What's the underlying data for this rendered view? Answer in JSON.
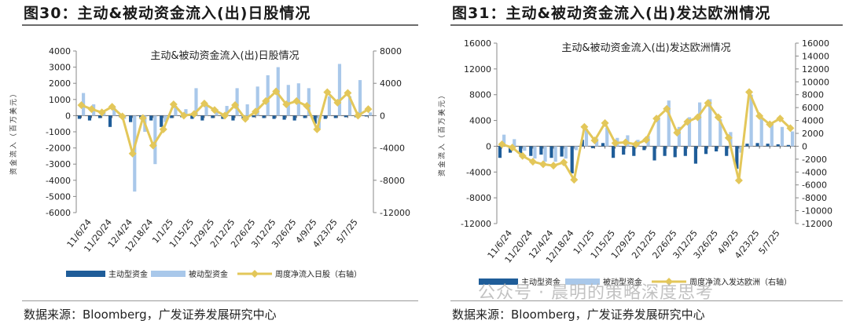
{
  "panels": [
    {
      "fig_title": "图30：主动&被动资金流入(出)日股情况",
      "source": "数据来源：Bloomberg，广发证券发展研究中心",
      "chart_data": {
        "type": "bar+line",
        "title": "主动&被动资金流入(出)日股情况",
        "ylabel": "资金流入（百万美元）",
        "ylim": [
          -6000,
          4000
        ],
        "y_ticks": [
          4000,
          3000,
          2000,
          1000,
          0,
          -1000,
          -2000,
          -3000,
          -4000,
          -5000,
          -6000
        ],
        "y2lim": [
          -12000,
          8000
        ],
        "y2_ticks": [
          8000,
          4000,
          0,
          -4000,
          -8000,
          -12000
        ],
        "x_tick_labels": [
          "11/6/24",
          "11/20/24",
          "12/4/24",
          "12/18/24",
          "1/1/25",
          "1/15/25",
          "1/29/25",
          "2/12/25",
          "2/26/25",
          "3/12/25",
          "3/26/25",
          "4/9/25",
          "4/23/25",
          "5/7/25"
        ],
        "weeks": [
          "10/30/24",
          "11/6/24",
          "11/13/24",
          "11/20/24",
          "11/27/24",
          "12/4/24",
          "12/11/24",
          "12/18/24",
          "12/25/24",
          "1/1/25",
          "1/8/25",
          "1/15/25",
          "1/22/25",
          "1/29/25",
          "2/5/25",
          "2/12/25",
          "2/19/25",
          "2/26/25",
          "3/5/25",
          "3/12/25",
          "3/19/25",
          "3/26/25",
          "4/2/25",
          "4/9/25",
          "4/16/25",
          "4/23/25",
          "4/30/25",
          "5/7/25",
          "5/14/25"
        ],
        "series": [
          {
            "name": "主动型资金",
            "axis": "left",
            "type": "bar",
            "color": "#1f5d99",
            "values": [
              -200,
              -300,
              -150,
              -700,
              -100,
              -400,
              -200,
              -300,
              -700,
              -150,
              -100,
              -200,
              -300,
              -150,
              -200,
              -300,
              -200,
              -100,
              -150,
              -200,
              -250,
              -300,
              -150,
              -500,
              -200,
              -150,
              -100,
              -100,
              -50
            ]
          },
          {
            "name": "被动型资金",
            "axis": "left",
            "type": "bar",
            "color": "#a9c8ea",
            "values": [
              1400,
              700,
              200,
              500,
              -200,
              -4700,
              -1000,
              -3000,
              -400,
              600,
              400,
              1700,
              700,
              400,
              600,
              1700,
              700,
              1800,
              2500,
              3000,
              1900,
              2000,
              1700,
              -800,
              1200,
              3200,
              1200,
              2200,
              200
            ]
          },
          {
            "name": "周度净流入日股（右轴）",
            "axis": "right",
            "type": "line",
            "color": "#e3c75a",
            "values": [
              1300,
              800,
              400,
              1100,
              -100,
              -4700,
              -300,
              -3700,
              -1700,
              1400,
              0,
              200,
              1500,
              700,
              0,
              1300,
              -400,
              500,
              1800,
              3000,
              1400,
              1800,
              1200,
              -1700,
              2900,
              1600,
              2800,
              0,
              800
            ]
          }
        ],
        "legend": [
          "主动型资金",
          "被动型资金",
          "周度净流入日股（右轴）"
        ],
        "legend_position": "bottom"
      }
    },
    {
      "fig_title": "图31：主动&被动资金流入(出)发达欧洲情况",
      "source": "数据来源：Bloomberg，广发证券发展研究中心",
      "chart_data": {
        "type": "bar+line",
        "title": "主动&被动资金流入(出)发达欧洲情况",
        "ylabel": "资金流入（百万美元）",
        "ylim": [
          -12000,
          16000
        ],
        "y_ticks": [
          16000,
          12000,
          8000,
          4000,
          0,
          -4000,
          -8000,
          -12000
        ],
        "y2lim": [
          -12000,
          16000
        ],
        "y2_ticks": [
          16000,
          14000,
          12000,
          10000,
          8000,
          6000,
          4000,
          2000,
          0,
          -2000,
          -4000,
          -6000,
          -8000,
          -10000,
          -12000
        ],
        "x_tick_labels": [
          "11/6/24",
          "11/20/24",
          "12/4/24",
          "12/18/24",
          "1/1/25",
          "1/15/25",
          "1/29/25",
          "2/12/25",
          "2/26/25",
          "3/12/25",
          "3/26/25",
          "4/9/25",
          "4/23/25",
          "5/7/25"
        ],
        "weeks": [
          "10/30/24",
          "11/6/24",
          "11/13/24",
          "11/20/24",
          "11/27/24",
          "12/4/24",
          "12/11/24",
          "12/18/24",
          "12/25/24",
          "1/1/25",
          "1/8/25",
          "1/15/25",
          "1/22/25",
          "1/29/25",
          "2/5/25",
          "2/12/25",
          "2/19/25",
          "2/26/25",
          "3/5/25",
          "3/12/25",
          "3/19/25",
          "3/26/25",
          "4/2/25",
          "4/9/25",
          "4/16/25",
          "4/23/25",
          "4/30/25",
          "5/7/25",
          "5/14/25"
        ],
        "series": [
          {
            "name": "主动型资金",
            "axis": "left",
            "type": "bar",
            "color": "#1f5d99",
            "values": [
              -1800,
              -1000,
              -1200,
              -1500,
              -1300,
              -1800,
              -1600,
              -4200,
              1000,
              -300,
              500,
              -1800,
              -1300,
              -1500,
              -600,
              -2200,
              -1500,
              -1700,
              -1500,
              -2700,
              -1200,
              -800,
              -1500,
              -3500,
              400,
              500,
              400,
              300,
              200
            ]
          },
          {
            "name": "被动型资金",
            "axis": "left",
            "type": "bar",
            "color": "#a9c8ea",
            "values": [
              1800,
              1100,
              -700,
              -1900,
              -2400,
              -2400,
              -1900,
              -600,
              2700,
              1200,
              2900,
              1300,
              1700,
              1000,
              1600,
              4500,
              7100,
              3000,
              4500,
              6800,
              7300,
              4200,
              2200,
              -1000,
              8000,
              4500,
              3600,
              3000,
              2300
            ]
          },
          {
            "name": "周度净流入发达欧洲（右轴）",
            "axis": "right",
            "type": "line",
            "color": "#e3c75a",
            "values": [
              300,
              -200,
              -1500,
              -2400,
              -2800,
              -3000,
              -2500,
              -5200,
              3000,
              900,
              3600,
              500,
              600,
              300,
              1000,
              4300,
              5800,
              2100,
              3800,
              4500,
              6700,
              4500,
              1300,
              -5300,
              8400,
              4700,
              3400,
              4300,
              2800
            ]
          }
        ],
        "legend": [
          "主动型资金",
          "被动型资金",
          "周度净流入发达欧洲（右轴）"
        ],
        "legend_position": "bottom"
      }
    }
  ],
  "watermark": "公众号 · 晨明的策略深度思考"
}
